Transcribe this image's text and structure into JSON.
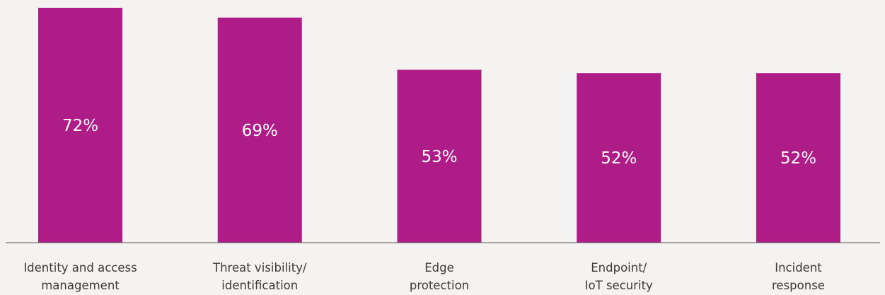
{
  "chart_data": {
    "type": "bar",
    "categories": [
      [
        "Identity and access",
        "management"
      ],
      [
        "Threat visibility/",
        "identification"
      ],
      [
        "Edge",
        "protection"
      ],
      [
        "Endpoint/",
        "IoT security"
      ],
      [
        "Incident",
        "response"
      ]
    ],
    "values": [
      72,
      69,
      53,
      52,
      52
    ],
    "value_labels": [
      "72%",
      "69%",
      "53%",
      "52%",
      "52%"
    ],
    "title": "",
    "xlabel": "",
    "ylabel": "",
    "ylim": [
      0,
      72
    ],
    "grid": false,
    "legend": "none",
    "colors": {
      "bar": "#ae1c87",
      "background": "#f4f3f1",
      "axis": "#555555",
      "label_text": "#3a3a3a",
      "value_text": "#ffffff"
    }
  }
}
